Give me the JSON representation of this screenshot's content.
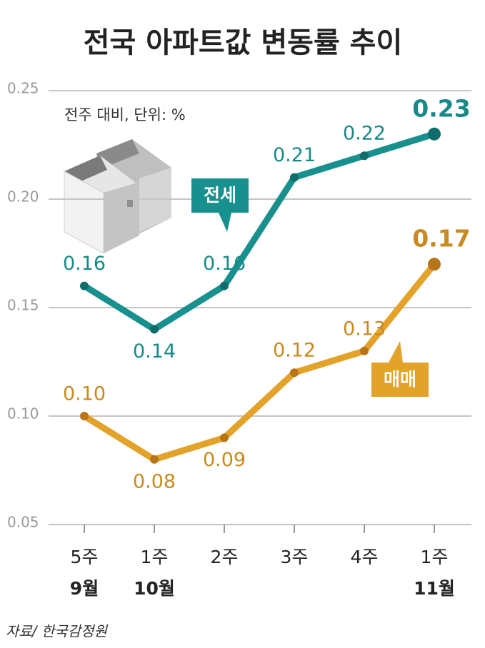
{
  "chart_data": {
    "type": "line",
    "title": "전국 아파트값 변동률 추이",
    "subtitle": "전주 대비, 단위: %",
    "source": "자료/ 한국감정원",
    "categories": [
      "5주",
      "1주",
      "2주",
      "3주",
      "4주",
      "1주"
    ],
    "category_groups": [
      "9월",
      "10월",
      null,
      null,
      null,
      "11월"
    ],
    "series": [
      {
        "name": "전세",
        "color": "#17908e",
        "values": [
          0.16,
          0.14,
          0.16,
          0.21,
          0.22,
          0.23
        ]
      },
      {
        "name": "매매",
        "color": "#e3a22a",
        "values": [
          0.1,
          0.08,
          0.09,
          0.12,
          0.13,
          0.17
        ],
        "value_labels": [
          "0.10",
          "0.08",
          "0.09",
          "0.12",
          "0.13",
          "0.17"
        ]
      }
    ],
    "ylim": [
      0.05,
      0.25
    ],
    "yticks": [
      {
        "value": 0.05,
        "label": "0.05"
      },
      {
        "value": 0.1,
        "label": "0.10"
      },
      {
        "value": 0.15,
        "label": "0.15"
      },
      {
        "value": 0.2,
        "label": "0.20"
      },
      {
        "value": 0.25,
        "label": "0.25"
      }
    ],
    "grid": true
  }
}
